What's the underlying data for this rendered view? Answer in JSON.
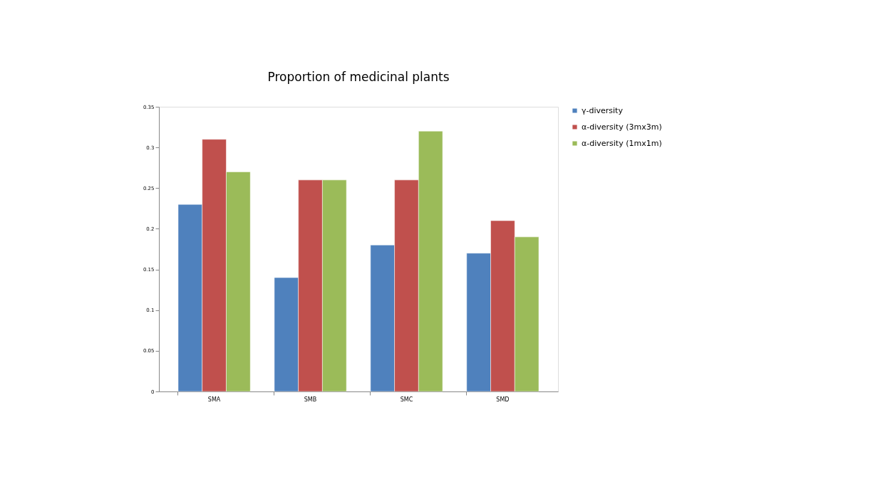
{
  "chart_data": {
    "type": "bar",
    "title": "Proportion  of medicinal plants",
    "categories": [
      "SMA",
      "SMB",
      "SMC",
      "SMD"
    ],
    "series": [
      {
        "name": "γ-diversity",
        "color": "#4f81bd",
        "values": [
          0.23,
          0.14,
          0.18,
          0.17
        ]
      },
      {
        "name": "α-diversity (3mx3m)",
        "color": "#c0504d",
        "values": [
          0.31,
          0.26,
          0.26,
          0.21
        ]
      },
      {
        "name": "α-diversity (1mx1m)",
        "color": "#9bbb59",
        "values": [
          0.27,
          0.26,
          0.32,
          0.19
        ]
      }
    ],
    "ylim": [
      0,
      0.35
    ],
    "yticks": [
      0,
      0.05,
      0.1,
      0.15,
      0.2,
      0.25,
      0.3,
      0.35
    ],
    "grid": false,
    "legend": "right"
  }
}
